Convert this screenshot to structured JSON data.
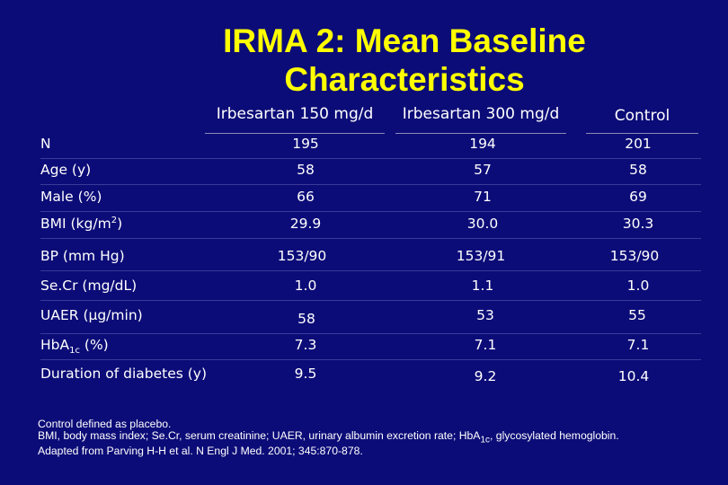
{
  "title": {
    "line1": "IRMA 2: Mean Baseline",
    "line2": "Characteristics"
  },
  "columns": [
    "Irbesartan 150 mg/d",
    "Irbesartan 300 mg/d",
    "Control"
  ],
  "rows": [
    {
      "label": "N",
      "values": [
        "195",
        "194",
        "201"
      ]
    },
    {
      "label": "Age (y)",
      "values": [
        "58",
        "57",
        "58"
      ]
    },
    {
      "label": "Male (%)",
      "values": [
        "66",
        "71",
        "69"
      ]
    },
    {
      "label_main": "BMI (kg/m",
      "label_sup": "2",
      "label_end": ")",
      "values": [
        "29.9",
        "30.0",
        "30.3"
      ]
    },
    {
      "label": "BP (mm Hg)",
      "values": [
        "153/90",
        "153/91",
        "153/90"
      ]
    },
    {
      "label": "Se.Cr (mg/dL)",
      "values": [
        "1.0",
        "1.1",
        "1.0"
      ]
    },
    {
      "label": "UAER (µg/min)",
      "values": [
        "58",
        "53",
        "55"
      ]
    },
    {
      "label_main": "HbA",
      "label_sub": "1c",
      "label_end": " (%)",
      "values": [
        "7.3",
        "7.1",
        "7.1"
      ]
    },
    {
      "label": "Duration of diabetes (y)",
      "values": [
        "9.5",
        "9.2",
        "10.4"
      ]
    }
  ],
  "footnotes": {
    "line1": "Control defined as placebo.",
    "line2_a": "BMI, body mass index; Se.Cr, serum creatinine; UAER, urinary albumin excretion rate; HbA",
    "line2_sub": "1c",
    "line2_b": ", glycosylated hemoglobin.",
    "line3": "Adapted from Parving H-H et al. N Engl J Med. 2001; 345:870-878."
  }
}
